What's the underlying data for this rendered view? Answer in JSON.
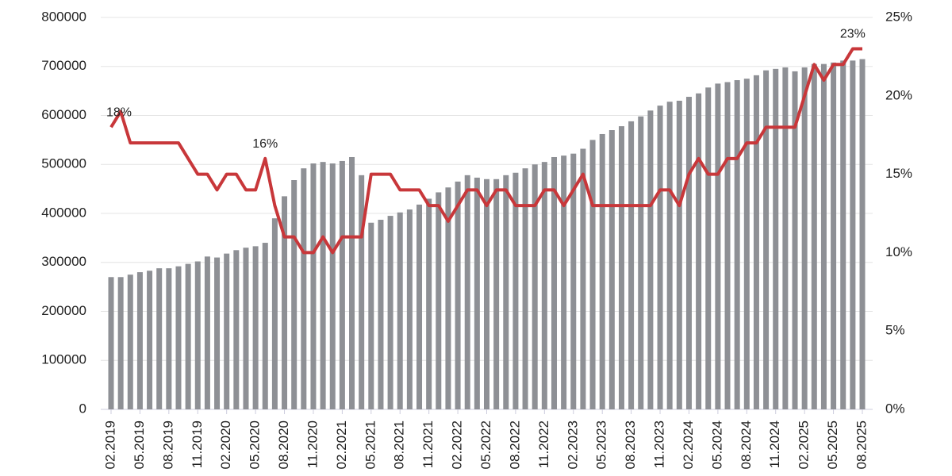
{
  "chart_data": {
    "type": "bar-line",
    "categories": [
      "02.2019",
      null,
      null,
      "05.2019",
      null,
      null,
      "08.2019",
      null,
      null,
      "11.2019",
      null,
      null,
      "02.2020",
      null,
      null,
      "05.2020",
      null,
      null,
      "08.2020",
      null,
      null,
      "11.2020",
      null,
      null,
      "02.2021",
      null,
      null,
      "05.2021",
      null,
      null,
      "08.2021",
      null,
      null,
      "11.2021",
      null,
      null,
      "02.2022",
      null,
      null,
      "05.2022",
      null,
      null,
      "08.2022",
      null,
      null,
      "11.2022",
      null,
      null,
      "02.2023",
      null,
      null,
      "05.2023",
      null,
      null,
      "08.2023",
      null,
      null,
      "11.2023",
      null,
      null,
      "02.2024",
      null,
      null,
      "05.2024",
      null,
      null,
      "08.2024",
      null,
      null,
      "11.2024",
      null,
      null,
      "02.2025",
      null,
      null,
      "05.2025",
      null,
      null,
      "08.2025"
    ],
    "series": [
      {
        "type": "bar",
        "color": "#8e9095",
        "values": [
          270000,
          270000,
          275000,
          280000,
          283000,
          288000,
          288000,
          292000,
          297000,
          302000,
          312000,
          310000,
          318000,
          325000,
          330000,
          333000,
          340000,
          390000,
          435000,
          468000,
          492000,
          502000,
          505000,
          502000,
          507000,
          515000,
          478000,
          381000,
          387000,
          395000,
          402000,
          408000,
          418000,
          430000,
          443000,
          453000,
          465000,
          478000,
          473000,
          470000,
          470000,
          478000,
          483000,
          492000,
          500000,
          505000,
          515000,
          518000,
          522000,
          532000,
          550000,
          562000,
          570000,
          578000,
          588000,
          598000,
          610000,
          620000,
          628000,
          630000,
          638000,
          645000,
          657000,
          665000,
          668000,
          672000,
          675000,
          682000,
          692000,
          695000,
          698000,
          690000,
          698000,
          705000,
          705000,
          708000,
          712000,
          712000,
          715000
        ]
      },
      {
        "type": "line",
        "axis": "y2",
        "color": "#c8373a",
        "values": [
          18,
          19,
          17,
          17,
          17,
          17,
          17,
          17,
          16,
          15,
          15,
          14,
          15,
          15,
          14,
          14,
          16,
          13,
          11,
          11,
          10,
          10,
          11,
          10,
          11,
          11,
          11,
          15,
          15,
          15,
          14,
          14,
          14,
          13,
          13,
          12,
          13,
          14,
          14,
          13,
          14,
          14,
          13,
          13,
          13,
          14,
          14,
          13,
          14,
          15,
          13,
          13,
          13,
          13,
          13,
          13,
          13,
          14,
          14,
          13,
          15,
          16,
          15,
          15,
          16,
          16,
          17,
          17,
          18,
          18,
          18,
          18,
          20,
          22,
          21,
          22,
          22,
          23,
          23
        ],
        "value_labels": [
          "18%",
          null,
          null,
          null,
          null,
          null,
          null,
          null,
          null,
          null,
          null,
          null,
          null,
          null,
          null,
          null,
          "16%",
          null,
          null,
          null,
          null,
          null,
          null,
          null,
          null,
          null,
          null,
          null,
          null,
          null,
          null,
          null,
          null,
          null,
          null,
          null,
          null,
          null,
          null,
          null,
          null,
          null,
          null,
          null,
          null,
          null,
          null,
          null,
          null,
          null,
          null,
          null,
          null,
          null,
          null,
          null,
          null,
          null,
          null,
          null,
          null,
          null,
          null,
          null,
          null,
          null,
          null,
          null,
          null,
          null,
          null,
          null,
          null,
          null,
          null,
          null,
          null,
          "23%",
          null
        ]
      }
    ],
    "ylim": [
      0,
      800000
    ],
    "yticks": [
      0,
      100000,
      200000,
      300000,
      400000,
      500000,
      600000,
      700000,
      800000
    ],
    "y2lim": [
      0,
      25
    ],
    "y2ticks": [
      {
        "value": 0,
        "label": "0%"
      },
      {
        "value": 5,
        "label": "5%"
      },
      {
        "value": 10,
        "label": "10%"
      },
      {
        "value": 15,
        "label": "15%"
      },
      {
        "value": 20,
        "label": "20%"
      },
      {
        "value": 25,
        "label": "25%"
      }
    ],
    "grid": true
  }
}
